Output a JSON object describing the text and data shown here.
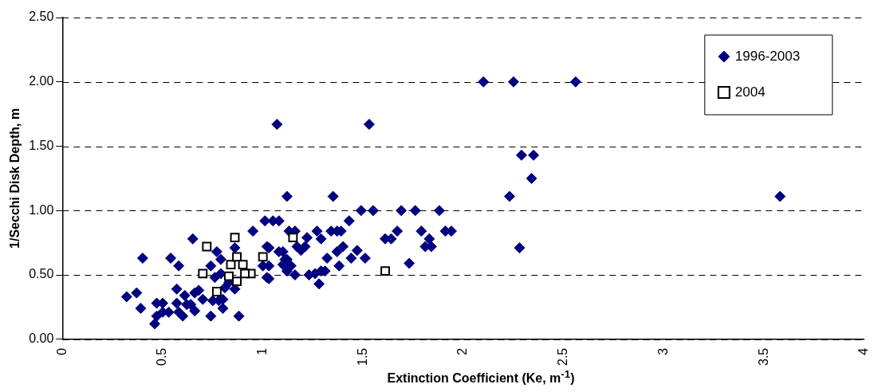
{
  "chart_data": {
    "type": "scatter",
    "xlabel": "Extinction Coefficient (Ke, m$^{-1}$)",
    "ylabel": "1/Secchi Disk Depth, m",
    "xlim": [
      0,
      4
    ],
    "xticks": [
      0,
      0.5,
      1,
      1.5,
      2,
      2.5,
      3,
      3.5,
      4
    ],
    "ylim": [
      0,
      2.5
    ],
    "yticks": [
      {
        "value": 0,
        "label": "0.00"
      },
      {
        "value": 0.5,
        "label": "0.50"
      },
      {
        "value": 1,
        "label": "1.00"
      },
      {
        "value": 1.5,
        "label": "1.50"
      },
      {
        "value": 2,
        "label": "2.00"
      },
      {
        "value": 2.5,
        "label": "2.50"
      }
    ],
    "grid": "y",
    "legend": "top right",
    "series": [
      {
        "name": "1996-2003",
        "color": "#000080",
        "marker": "diamond",
        "x": [
          0.32,
          0.37,
          0.39,
          0.4,
          0.47,
          0.46,
          0.47,
          0.5,
          0.5,
          0.53,
          0.54,
          0.58,
          0.57,
          0.57,
          0.58,
          0.6,
          0.61,
          0.62,
          0.64,
          0.66,
          0.66,
          0.65,
          0.68,
          0.7,
          0.74,
          0.74,
          0.75,
          0.76,
          0.77,
          0.78,
          0.79,
          0.8,
          0.8,
          0.79,
          0.81,
          0.83,
          0.86,
          0.88,
          0.86,
          0.95,
          1.01,
          1.05,
          1.02,
          1.02,
          1.0,
          1.03,
          1.08,
          1.07,
          1.12,
          1.53,
          1.12,
          1.35,
          1.49,
          1.55,
          1.69,
          1.76,
          1.88,
          1.08,
          1.43,
          1.13,
          1.16,
          1.27,
          1.29,
          1.34,
          1.37,
          1.39,
          1.22,
          1.17,
          1.19,
          1.21,
          1.1,
          1.11,
          1.1,
          1.14,
          1.12,
          1.16,
          1.23,
          1.26,
          1.29,
          1.31,
          1.28,
          1.32,
          1.38,
          1.37,
          1.4,
          1.44,
          1.47,
          1.51,
          1.61,
          1.64,
          1.67,
          1.73,
          1.79,
          1.83,
          1.81,
          1.84,
          1.91,
          1.94,
          1.03,
          1.03,
          2.1,
          2.25,
          2.56,
          2.29,
          2.35,
          2.34,
          2.23,
          2.28,
          3.58
        ],
        "values": [
          0.33,
          0.36,
          0.24,
          0.63,
          0.18,
          0.12,
          0.28,
          0.28,
          0.21,
          0.21,
          0.63,
          0.57,
          0.39,
          0.28,
          0.21,
          0.18,
          0.34,
          0.27,
          0.27,
          0.22,
          0.36,
          0.78,
          0.38,
          0.31,
          0.57,
          0.18,
          0.3,
          0.48,
          0.68,
          0.3,
          0.62,
          0.24,
          0.31,
          0.51,
          0.4,
          0.44,
          0.71,
          0.18,
          0.39,
          0.84,
          0.92,
          0.92,
          0.72,
          0.48,
          0.57,
          0.57,
          0.68,
          1.67,
          0.62,
          1.67,
          1.11,
          1.11,
          1.0,
          1.0,
          1.0,
          1.0,
          1.0,
          0.92,
          0.92,
          0.84,
          0.84,
          0.84,
          0.78,
          0.84,
          0.84,
          0.84,
          0.79,
          0.72,
          0.69,
          0.72,
          0.68,
          0.62,
          0.58,
          0.57,
          0.53,
          0.5,
          0.5,
          0.51,
          0.53,
          0.53,
          0.43,
          0.63,
          0.57,
          0.68,
          0.72,
          0.63,
          0.69,
          0.63,
          0.78,
          0.78,
          0.84,
          0.59,
          0.84,
          0.78,
          0.72,
          0.72,
          0.84,
          0.84,
          0.71,
          0.47,
          2.0,
          2.0,
          2.0,
          1.43,
          1.43,
          1.25,
          1.11,
          0.71,
          1.11
        ]
      },
      {
        "name": "2004",
        "color": "#ffffff",
        "marker": "square",
        "x": [
          0.72,
          0.86,
          0.7,
          0.77,
          0.84,
          0.87,
          0.9,
          0.94,
          0.83,
          0.87,
          0.91,
          1.0,
          1.15,
          1.61
        ],
        "values": [
          0.72,
          0.79,
          0.51,
          0.37,
          0.58,
          0.64,
          0.58,
          0.51,
          0.49,
          0.45,
          0.51,
          0.64,
          0.79,
          0.53
        ]
      }
    ]
  }
}
